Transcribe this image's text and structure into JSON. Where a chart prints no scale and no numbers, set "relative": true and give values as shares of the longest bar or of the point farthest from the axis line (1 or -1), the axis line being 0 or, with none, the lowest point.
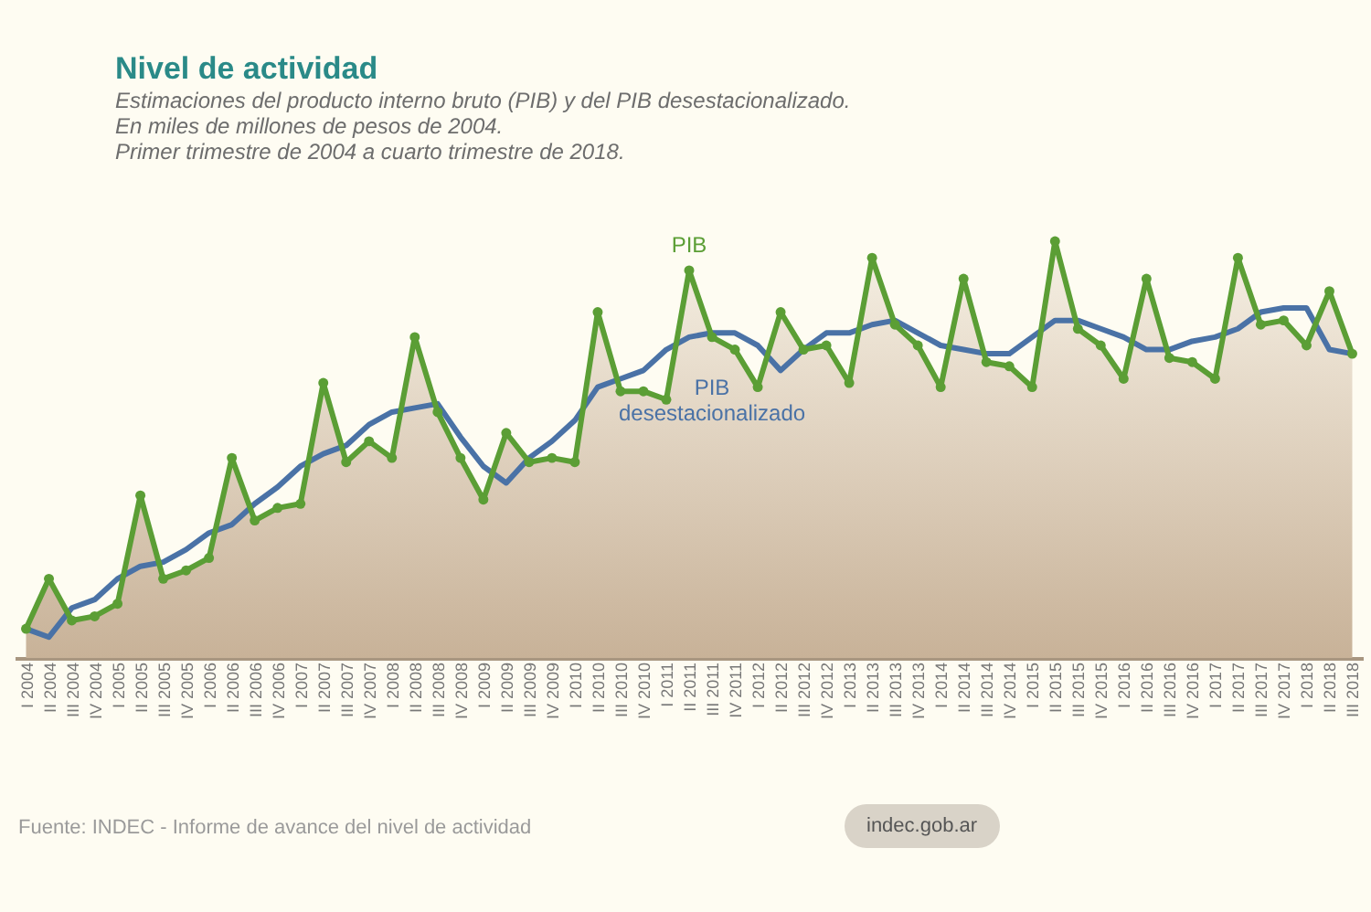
{
  "chart_data": {
    "type": "line",
    "title": "Nivel de actividad",
    "subtitle": "Estimaciones del producto interno bruto (PIB) y del PIB desestacionalizado.\nEn miles de millones de pesos de 2004.\nPrimer trimestre de 2004 a cuarto trimestre de 2018.",
    "annotations": [
      "Fuente: INDEC - Informe de avance del nivel de actividad",
      "indec.gob.ar"
    ],
    "relative": true,
    "categories": [
      "I 2004",
      "II 2004",
      "III 2004",
      "IV 2004",
      "I 2005",
      "II 2005",
      "III 2005",
      "IV 2005",
      "I 2006",
      "II 2006",
      "III 2006",
      "IV 2006",
      "I 2007",
      "II 2007",
      "III 2007",
      "IV 2007",
      "I 2008",
      "II 2008",
      "III 2008",
      "IV 2008",
      "I 2009",
      "II 2009",
      "III 2009",
      "IV 2009",
      "I 2010",
      "II 2010",
      "III 2010",
      "IV 2010",
      "I 2011",
      "II 2011",
      "III 2011",
      "IV 2011",
      "I 2012",
      "II 2012",
      "III 2012",
      "IV 2012",
      "I 2013",
      "II 2013",
      "III 2013",
      "IV 2013",
      "I 2014",
      "II 2014",
      "III 2014",
      "IV 2014",
      "I 2015",
      "II 2015",
      "III 2015",
      "IV 2015",
      "I 2016",
      "II 2016",
      "III 2016",
      "IV 2016",
      "I 2017",
      "II 2017",
      "III 2017",
      "IV 2017",
      "I 2018",
      "II 2018",
      "III 2018"
    ],
    "series": [
      {
        "name": "PIB",
        "type": "area",
        "color": "#5b9e35",
        "marker": "circle",
        "values": [
          0.07,
          0.19,
          0.09,
          0.1,
          0.13,
          0.39,
          0.19,
          0.21,
          0.24,
          0.48,
          0.33,
          0.36,
          0.37,
          0.66,
          0.47,
          0.52,
          0.48,
          0.77,
          0.59,
          0.48,
          0.38,
          0.54,
          0.47,
          0.48,
          0.47,
          0.83,
          0.64,
          0.64,
          0.62,
          0.93,
          0.77,
          0.74,
          0.65,
          0.83,
          0.74,
          0.75,
          0.66,
          0.96,
          0.8,
          0.75,
          0.65,
          0.91,
          0.71,
          0.7,
          0.65,
          1,
          0.79,
          0.75,
          0.67,
          0.91,
          0.72,
          0.71,
          0.67,
          0.96,
          0.8,
          0.81,
          0.75,
          0.88,
          0.73
        ]
      },
      {
        "name": "PIB desestacionalizado",
        "color": "#4a72a6",
        "values": [
          0.07,
          0.05,
          0.12,
          0.14,
          0.19,
          0.22,
          0.23,
          0.26,
          0.3,
          0.32,
          0.37,
          0.41,
          0.46,
          0.49,
          0.51,
          0.56,
          0.59,
          0.6,
          0.61,
          0.53,
          0.46,
          0.42,
          0.48,
          0.52,
          0.57,
          0.65,
          0.67,
          0.69,
          0.74,
          0.77,
          0.78,
          0.78,
          0.75,
          0.69,
          0.74,
          0.78,
          0.78,
          0.8,
          0.81,
          0.78,
          0.75,
          0.74,
          0.73,
          0.73,
          0.77,
          0.81,
          0.81,
          0.79,
          0.77,
          0.74,
          0.74,
          0.76,
          0.77,
          0.79,
          0.83,
          0.84,
          0.84,
          0.74,
          0.73
        ]
      }
    ]
  }
}
